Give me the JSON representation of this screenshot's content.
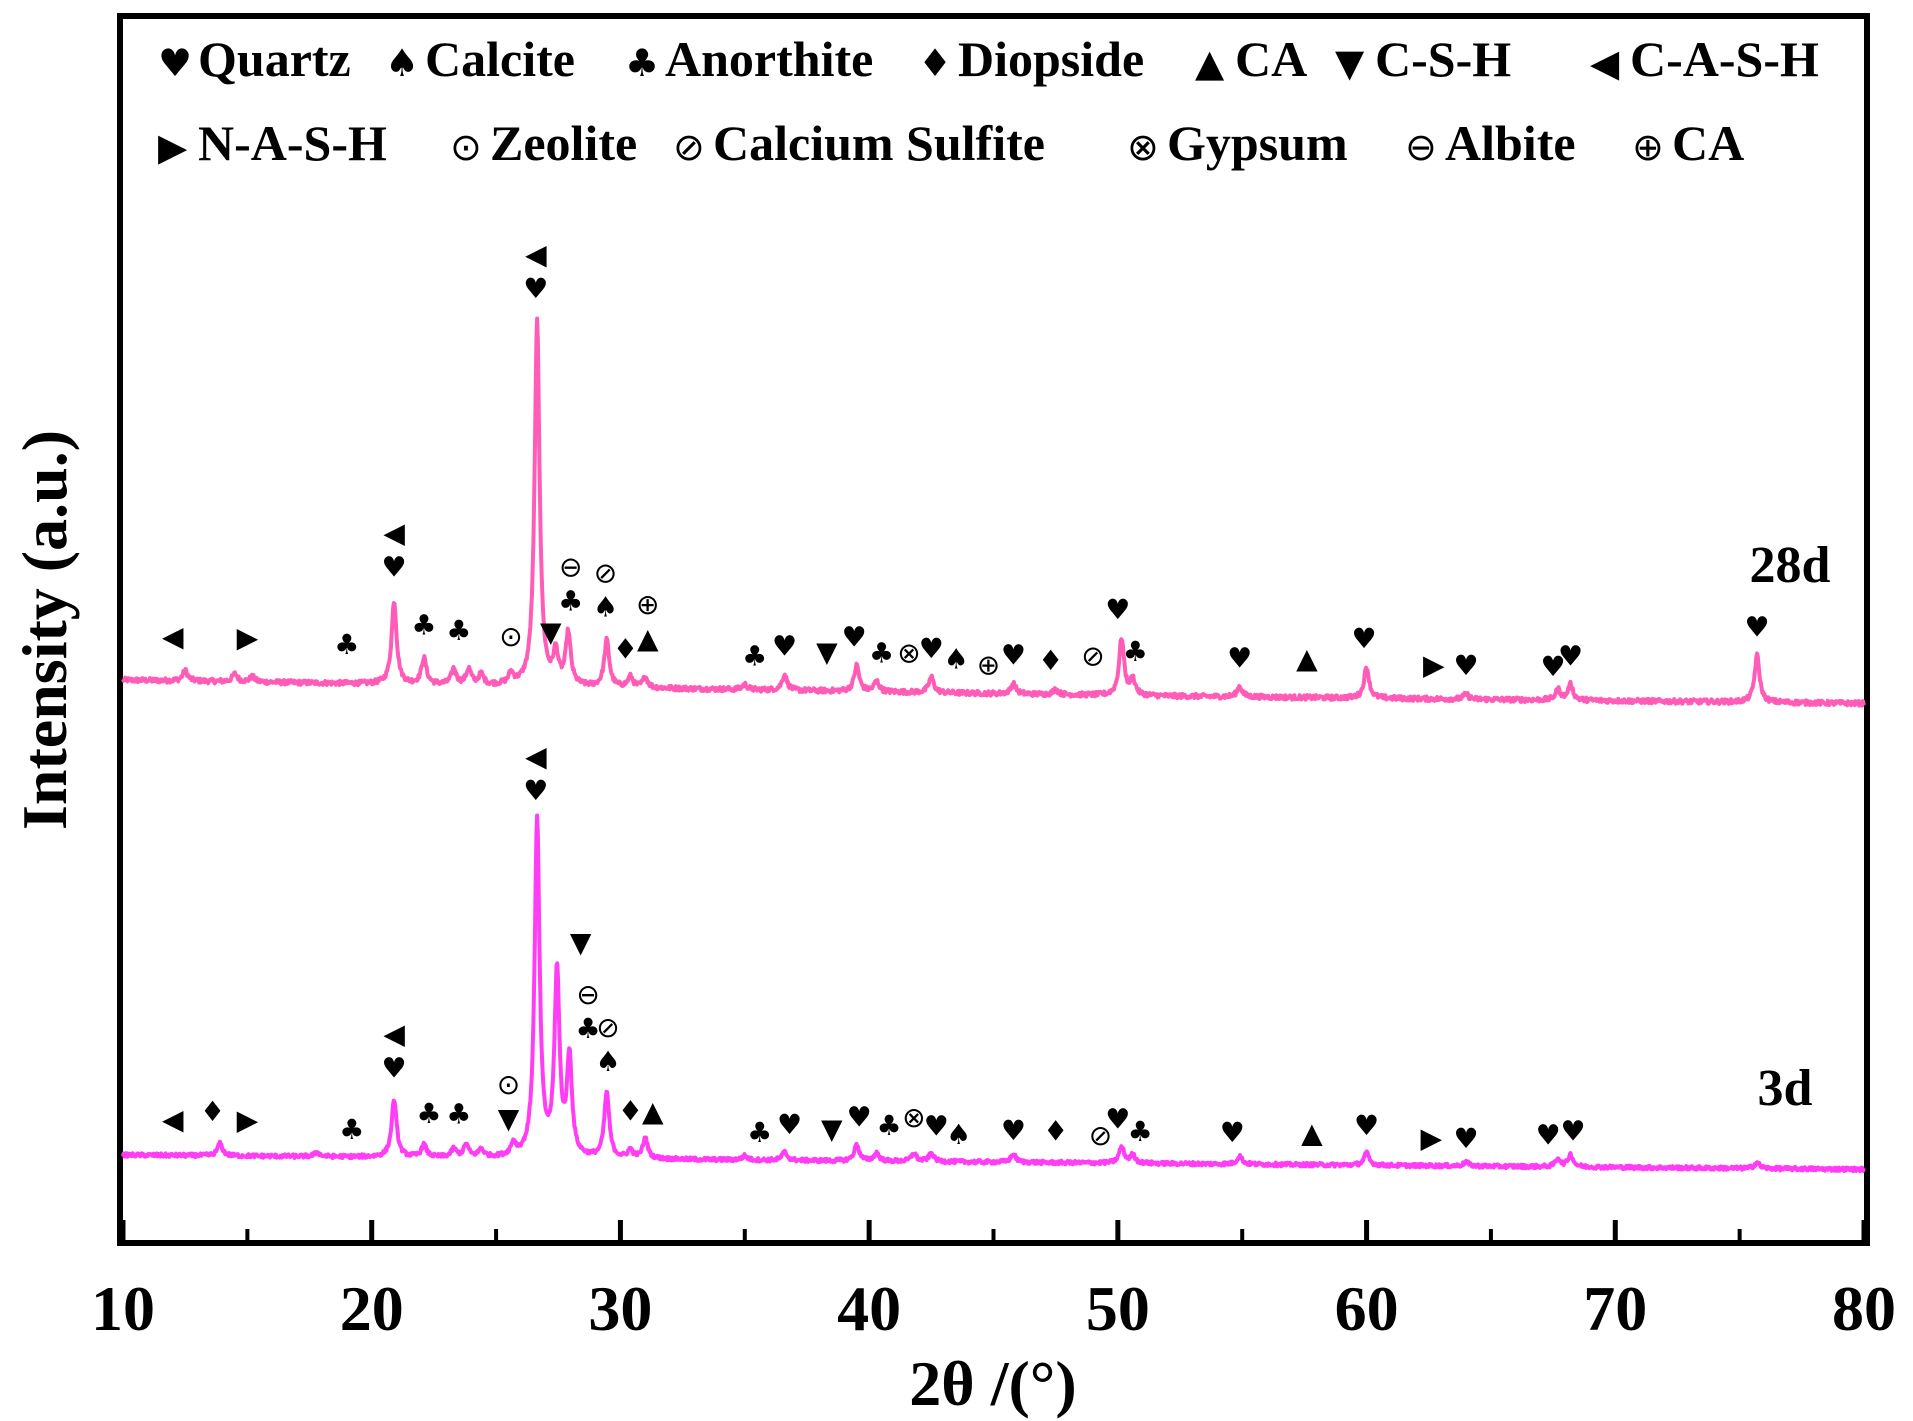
{
  "chart_data": {
    "type": "line",
    "title": "",
    "xlabel": "2θ /(°)",
    "ylabel": "Intensity (a.u.)",
    "xlim": [
      10,
      80
    ],
    "xticks": [
      "10",
      "20",
      "30",
      "40",
      "50",
      "60",
      "70",
      "80"
    ],
    "yticks_shown": false,
    "grid": false,
    "line_color": "#ff5cb8",
    "line_color_3d": "#ff3df5",
    "legend": {
      "placement": "top",
      "rows": [
        [
          {
            "symbol": "♥",
            "label": "Quartz"
          },
          {
            "symbol": "♠",
            "label": "Calcite"
          },
          {
            "symbol": "♣",
            "label": "Anorthite"
          },
          {
            "symbol": "♦",
            "label": "Diopside"
          },
          {
            "symbol": "▲",
            "label": "CA"
          },
          {
            "symbol": "▼",
            "label": " C-S-H"
          },
          {
            "symbol": "◀",
            "label": "C-A-S-H"
          }
        ],
        [
          {
            "symbol": "▶",
            "label": "N-A-S-H"
          },
          {
            "symbol": "⊙",
            "label": "Zeolite"
          },
          {
            "symbol": "⊘",
            "label": "Calcium Sulfite"
          },
          {
            "symbol": "⊗",
            "label": "Gypsum"
          },
          {
            "symbol": "⊖",
            "label": "Albite"
          },
          {
            "symbol": "⊕",
            "label": "CA"
          }
        ]
      ]
    },
    "series": [
      {
        "name": "28d",
        "baseline": [
          [
            10,
            0.0
          ],
          [
            30,
            -1.5
          ],
          [
            50,
            -3.0
          ],
          [
            80,
            -4.5
          ]
        ],
        "peaks": [
          {
            "x": 12.5,
            "h": 2
          },
          {
            "x": 14.5,
            "h": 1.5
          },
          {
            "x": 15.2,
            "h": 1
          },
          {
            "x": 20.9,
            "h": 16
          },
          {
            "x": 22.1,
            "h": 5
          },
          {
            "x": 23.3,
            "h": 3
          },
          {
            "x": 23.9,
            "h": 3
          },
          {
            "x": 24.4,
            "h": 2
          },
          {
            "x": 25.6,
            "h": 2
          },
          {
            "x": 26.65,
            "h": 70
          },
          {
            "x": 27.4,
            "h": 6
          },
          {
            "x": 27.9,
            "h": 10
          },
          {
            "x": 29.45,
            "h": 9
          },
          {
            "x": 30.4,
            "h": 2
          },
          {
            "x": 31.0,
            "h": 2
          },
          {
            "x": 35.0,
            "h": 1
          },
          {
            "x": 36.6,
            "h": 3
          },
          {
            "x": 39.5,
            "h": 5
          },
          {
            "x": 40.3,
            "h": 2
          },
          {
            "x": 42.5,
            "h": 3
          },
          {
            "x": 45.8,
            "h": 2
          },
          {
            "x": 47.5,
            "h": 1
          },
          {
            "x": 50.15,
            "h": 11
          },
          {
            "x": 50.6,
            "h": 3
          },
          {
            "x": 54.9,
            "h": 2
          },
          {
            "x": 60.0,
            "h": 6
          },
          {
            "x": 64.0,
            "h": 1
          },
          {
            "x": 67.7,
            "h": 2
          },
          {
            "x": 68.2,
            "h": 3
          },
          {
            "x": 75.7,
            "h": 9
          }
        ],
        "markers": [
          {
            "x": 12.0,
            "h": 4,
            "syms": [
              "◀"
            ]
          },
          {
            "x": 15.0,
            "h": 4,
            "syms": [
              "▶"
            ]
          },
          {
            "x": 19.0,
            "h": 3,
            "syms": [
              "♣"
            ]
          },
          {
            "x": 20.9,
            "h": 18,
            "syms": [
              "♥",
              "◀"
            ]
          },
          {
            "x": 22.1,
            "h": 7,
            "syms": [
              "♣"
            ]
          },
          {
            "x": 23.5,
            "h": 6,
            "syms": [
              "♣"
            ]
          },
          {
            "x": 25.6,
            "h": 5,
            "syms": [
              "⊙"
            ]
          },
          {
            "x": 26.6,
            "h": 72,
            "syms": [
              "♥",
              "◀"
            ]
          },
          {
            "x": 27.2,
            "h": 6,
            "syms": [
              "▼"
            ]
          },
          {
            "x": 28.0,
            "h": 12,
            "syms": [
              "♣",
              "⊖"
            ]
          },
          {
            "x": 29.4,
            "h": 11,
            "syms": [
              "♠",
              "⊘"
            ]
          },
          {
            "x": 30.2,
            "h": 3,
            "syms": [
              "♦"
            ]
          },
          {
            "x": 31.1,
            "h": 5,
            "syms": [
              "▲",
              "⊕"
            ]
          },
          {
            "x": 35.4,
            "h": 2,
            "syms": [
              "♣"
            ]
          },
          {
            "x": 36.6,
            "h": 4,
            "syms": [
              "♥"
            ]
          },
          {
            "x": 38.3,
            "h": 3,
            "syms": [
              "▼"
            ]
          },
          {
            "x": 39.4,
            "h": 6,
            "syms": [
              "♥"
            ]
          },
          {
            "x": 40.5,
            "h": 3,
            "syms": [
              "♣"
            ]
          },
          {
            "x": 41.6,
            "h": 3,
            "syms": [
              "⊗"
            ]
          },
          {
            "x": 42.5,
            "h": 4,
            "syms": [
              "♥"
            ]
          },
          {
            "x": 43.5,
            "h": 2,
            "syms": [
              "♠"
            ]
          },
          {
            "x": 44.8,
            "h": 1,
            "syms": [
              "⊕"
            ]
          },
          {
            "x": 45.8,
            "h": 3,
            "syms": [
              "♥"
            ]
          },
          {
            "x": 47.3,
            "h": 2,
            "syms": [
              "♦"
            ]
          },
          {
            "x": 49.0,
            "h": 3,
            "syms": [
              "⊘"
            ]
          },
          {
            "x": 50.0,
            "h": 12,
            "syms": [
              "♥"
            ]
          },
          {
            "x": 50.7,
            "h": 4,
            "syms": [
              "♣"
            ]
          },
          {
            "x": 54.9,
            "h": 3,
            "syms": [
              "♥"
            ]
          },
          {
            "x": 57.6,
            "h": 3,
            "syms": [
              "▲"
            ]
          },
          {
            "x": 59.9,
            "h": 7,
            "syms": [
              "♥"
            ]
          },
          {
            "x": 62.7,
            "h": 2,
            "syms": [
              "▶"
            ]
          },
          {
            "x": 64.0,
            "h": 2,
            "syms": [
              "♥"
            ]
          },
          {
            "x": 67.5,
            "h": 2,
            "syms": [
              "♥"
            ]
          },
          {
            "x": 68.2,
            "h": 4,
            "syms": [
              "♥"
            ]
          },
          {
            "x": 75.7,
            "h": 10,
            "syms": [
              "♥"
            ]
          }
        ]
      },
      {
        "name": "3d",
        "baseline": [
          [
            10,
            0.0
          ],
          [
            30,
            -1.0
          ],
          [
            50,
            -2.0
          ],
          [
            80,
            -3.5
          ]
        ],
        "peaks": [
          {
            "x": 13.9,
            "h": 3
          },
          {
            "x": 17.8,
            "h": 1
          },
          {
            "x": 20.9,
            "h": 14
          },
          {
            "x": 22.1,
            "h": 3
          },
          {
            "x": 23.3,
            "h": 2
          },
          {
            "x": 23.8,
            "h": 3
          },
          {
            "x": 24.4,
            "h": 2
          },
          {
            "x": 25.7,
            "h": 3
          },
          {
            "x": 26.65,
            "h": 82
          },
          {
            "x": 27.45,
            "h": 45
          },
          {
            "x": 27.95,
            "h": 24
          },
          {
            "x": 29.45,
            "h": 16
          },
          {
            "x": 30.4,
            "h": 2
          },
          {
            "x": 31.0,
            "h": 5
          },
          {
            "x": 35.0,
            "h": 1
          },
          {
            "x": 36.6,
            "h": 2
          },
          {
            "x": 39.5,
            "h": 4
          },
          {
            "x": 40.3,
            "h": 2
          },
          {
            "x": 41.8,
            "h": 2
          },
          {
            "x": 42.5,
            "h": 2
          },
          {
            "x": 45.8,
            "h": 2
          },
          {
            "x": 50.15,
            "h": 4
          },
          {
            "x": 50.6,
            "h": 2
          },
          {
            "x": 54.9,
            "h": 2
          },
          {
            "x": 60.0,
            "h": 3
          },
          {
            "x": 64.0,
            "h": 1
          },
          {
            "x": 67.7,
            "h": 2
          },
          {
            "x": 68.2,
            "h": 3
          },
          {
            "x": 75.7,
            "h": 1.5
          }
        ],
        "markers": [
          {
            "x": 12.0,
            "h": 3,
            "syms": [
              "◀"
            ]
          },
          {
            "x": 13.6,
            "h": 5,
            "syms": [
              "♦"
            ]
          },
          {
            "x": 15.0,
            "h": 3,
            "syms": [
              "▶"
            ]
          },
          {
            "x": 19.2,
            "h": 1,
            "syms": [
              "♣"
            ]
          },
          {
            "x": 20.9,
            "h": 16,
            "syms": [
              "♥",
              "◀"
            ]
          },
          {
            "x": 22.3,
            "h": 5,
            "syms": [
              "♣"
            ]
          },
          {
            "x": 23.5,
            "h": 5,
            "syms": [
              "♣"
            ]
          },
          {
            "x": 25.5,
            "h": 4,
            "syms": [
              "▼",
              "⊙"
            ]
          },
          {
            "x": 26.6,
            "h": 84,
            "syms": [
              "♥",
              "◀"
            ]
          },
          {
            "x": 28.4,
            "h": 47,
            "syms": [
              "▼"
            ]
          },
          {
            "x": 28.7,
            "h": 26,
            "syms": [
              "♣",
              "⊖"
            ]
          },
          {
            "x": 29.5,
            "h": 18,
            "syms": [
              "♠",
              "⊘"
            ]
          },
          {
            "x": 30.4,
            "h": 6,
            "syms": [
              "♦"
            ]
          },
          {
            "x": 31.3,
            "h": 6,
            "syms": [
              "▲"
            ]
          },
          {
            "x": 35.6,
            "h": 1,
            "syms": [
              "♣"
            ]
          },
          {
            "x": 36.8,
            "h": 3,
            "syms": [
              "♥"
            ]
          },
          {
            "x": 38.5,
            "h": 2,
            "syms": [
              "▼"
            ]
          },
          {
            "x": 39.6,
            "h": 5,
            "syms": [
              "♥"
            ]
          },
          {
            "x": 40.8,
            "h": 3,
            "syms": [
              "♣"
            ]
          },
          {
            "x": 41.8,
            "h": 5,
            "syms": [
              "⊗"
            ]
          },
          {
            "x": 42.7,
            "h": 3,
            "syms": [
              "♥"
            ]
          },
          {
            "x": 43.6,
            "h": 1,
            "syms": [
              "♠"
            ]
          },
          {
            "x": 45.8,
            "h": 2,
            "syms": [
              "♥"
            ]
          },
          {
            "x": 47.5,
            "h": 2,
            "syms": [
              "♦"
            ]
          },
          {
            "x": 49.3,
            "h": 1,
            "syms": [
              "⊘"
            ]
          },
          {
            "x": 50.0,
            "h": 5,
            "syms": [
              "♥"
            ]
          },
          {
            "x": 50.9,
            "h": 2,
            "syms": [
              "♣"
            ]
          },
          {
            "x": 54.6,
            "h": 2,
            "syms": [
              "♥"
            ]
          },
          {
            "x": 57.8,
            "h": 2,
            "syms": [
              "▲"
            ]
          },
          {
            "x": 60.0,
            "h": 4,
            "syms": [
              "♥"
            ]
          },
          {
            "x": 62.6,
            "h": 1,
            "syms": [
              "▶"
            ]
          },
          {
            "x": 64.0,
            "h": 1,
            "syms": [
              "♥"
            ]
          },
          {
            "x": 67.3,
            "h": 2,
            "syms": [
              "♥"
            ]
          },
          {
            "x": 68.3,
            "h": 3,
            "syms": [
              "♥"
            ]
          }
        ]
      }
    ]
  }
}
